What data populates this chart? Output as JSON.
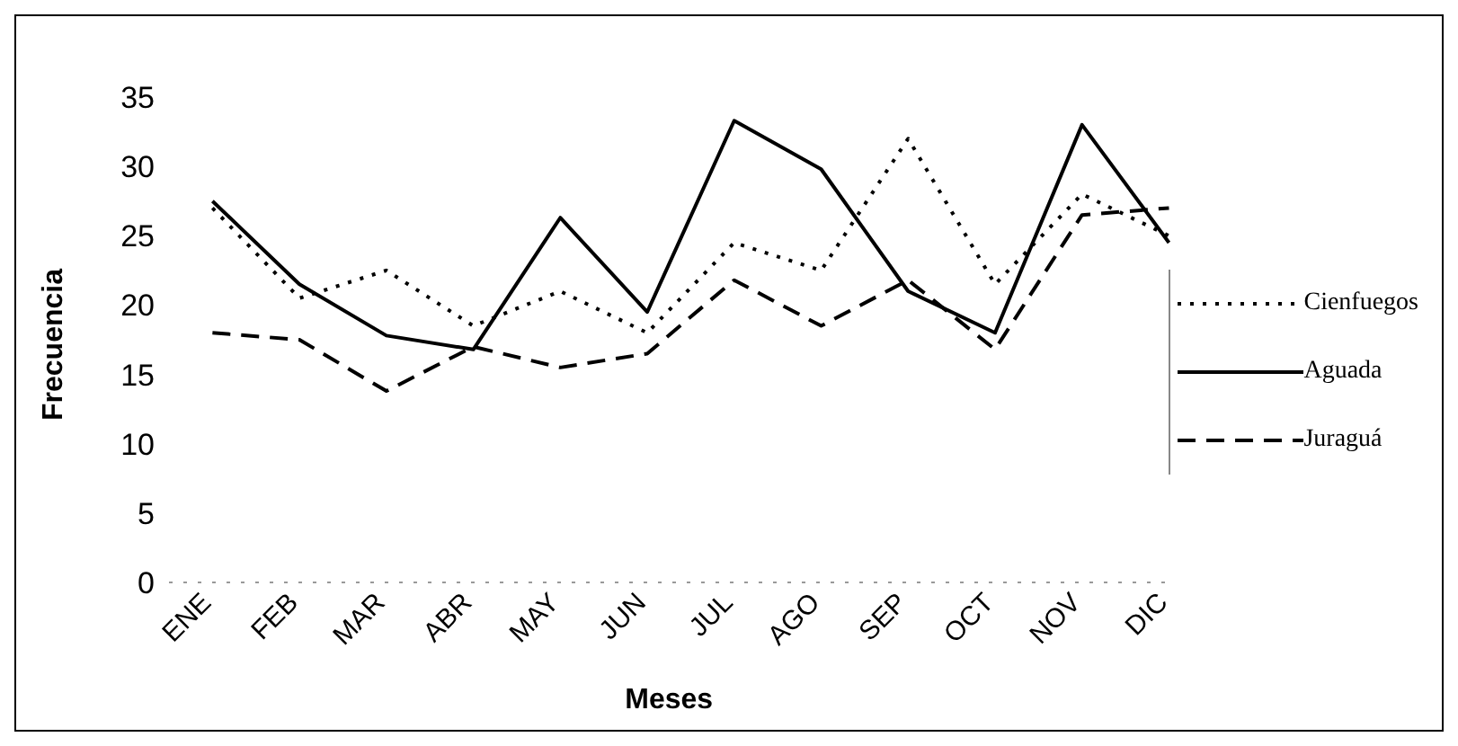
{
  "chart_data": {
    "type": "line",
    "xlabel": "Meses",
    "ylabel": "Frecuencia",
    "categories": [
      "ENE",
      "FEB",
      "MAR",
      "ABR",
      "MAY",
      "JUN",
      "JUL",
      "AGO",
      "SEP",
      "OCT",
      "NOV",
      "DIC"
    ],
    "series": [
      {
        "name": "Cienfuegos",
        "color": "#000000",
        "line_style": "dotted",
        "values": [
          27,
          20.5,
          22.5,
          18.5,
          21,
          18,
          24.5,
          22.5,
          32,
          21.5,
          28,
          25
        ]
      },
      {
        "name": "Aguada",
        "color": "#000000",
        "line_style": "solid",
        "values": [
          27.5,
          21.5,
          17.8,
          16.8,
          26.3,
          19.5,
          33.3,
          29.8,
          21,
          18,
          33,
          24.5
        ]
      },
      {
        "name": "Juraguá",
        "color": "#000000",
        "line_style": "dashed",
        "values": [
          18,
          17.5,
          13.8,
          17,
          15.5,
          16.5,
          21.8,
          18.5,
          21.8,
          16.8,
          26.5,
          27
        ]
      }
    ],
    "ylim": [
      0,
      35
    ],
    "yticks": [
      0,
      5,
      10,
      15,
      20,
      25,
      30,
      35
    ],
    "grid": false,
    "legend": "right",
    "marker": "none"
  }
}
